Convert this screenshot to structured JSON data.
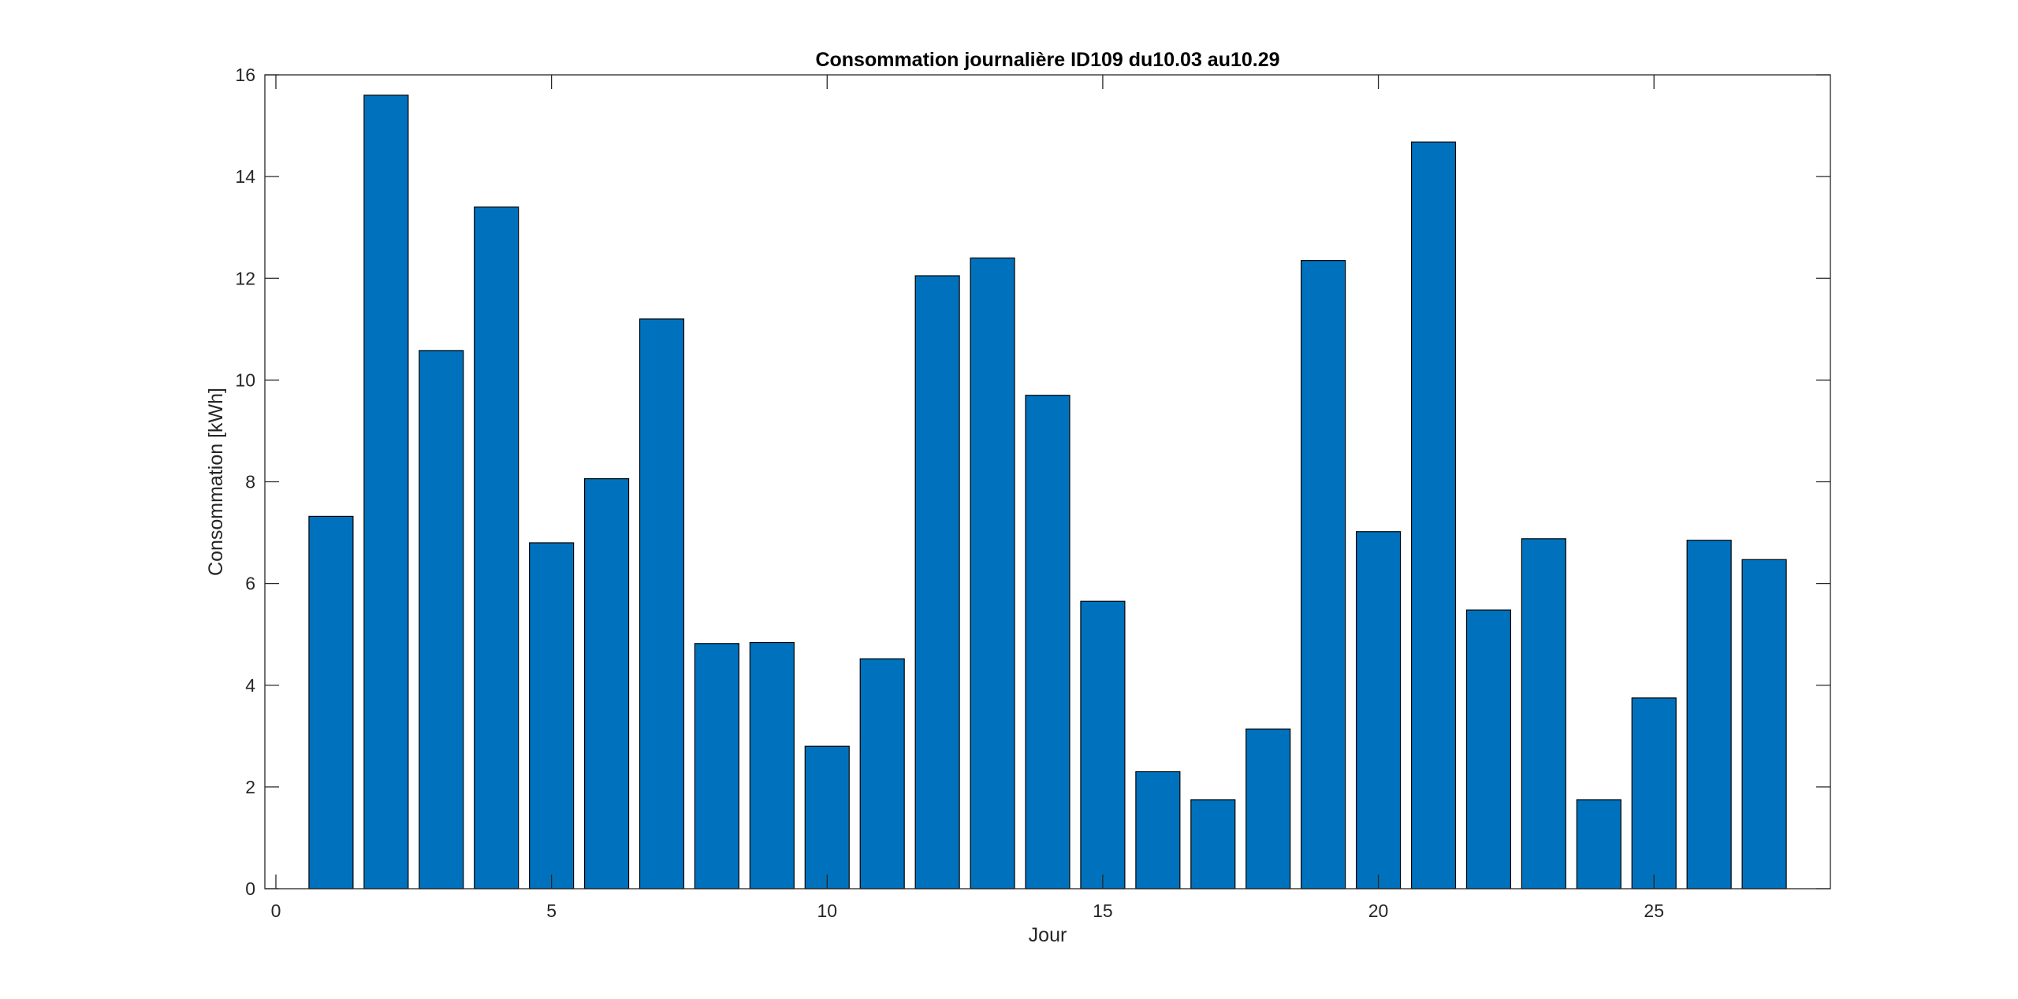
{
  "chart_data": {
    "type": "bar",
    "title": "Consommation journalière ID109 du10.03 au10.29",
    "xlabel": "Jour",
    "ylabel": "Consommation [kWh]",
    "x": [
      1,
      2,
      3,
      4,
      5,
      6,
      7,
      8,
      9,
      10,
      11,
      12,
      13,
      14,
      15,
      16,
      17,
      18,
      19,
      20,
      21,
      22,
      23,
      24,
      25,
      26,
      27
    ],
    "values": [
      7.32,
      15.6,
      10.58,
      13.4,
      6.8,
      8.06,
      11.2,
      4.82,
      4.84,
      2.8,
      4.52,
      12.05,
      12.4,
      9.7,
      5.65,
      2.3,
      1.75,
      3.14,
      12.35,
      7.02,
      14.68,
      5.48,
      6.88,
      1.75,
      3.75,
      6.85,
      6.47
    ],
    "xlim": [
      -0.2,
      28.2
    ],
    "ylim": [
      0,
      16
    ],
    "xticks": [
      0,
      5,
      10,
      15,
      20,
      25
    ],
    "yticks": [
      0,
      2,
      4,
      6,
      8,
      10,
      12,
      14,
      16
    ],
    "grid": false,
    "bar_color": "#0072bd",
    "edge_color": "#000000",
    "axis_color": "#262626"
  }
}
